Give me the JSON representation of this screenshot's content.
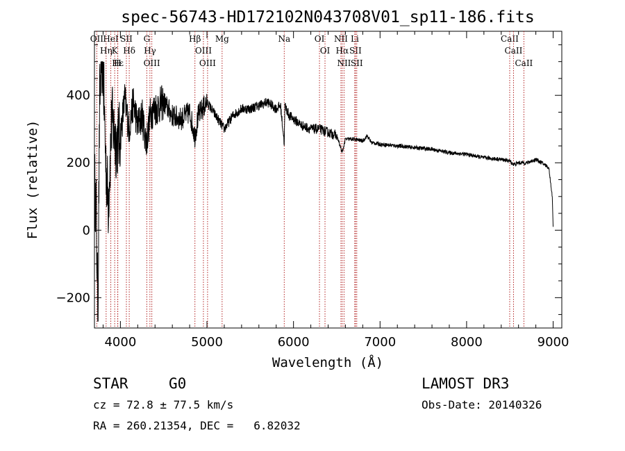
{
  "chart_data": {
    "type": "line",
    "title": "spec-56743-HD172102N043708V01_sp11-186.fits",
    "xlabel": "Wavelength (Å)",
    "ylabel": "Flux (relative)",
    "xlim": [
      3700,
      9100
    ],
    "ylim": [
      -290,
      590
    ],
    "x_ticks": [
      4000,
      5000,
      6000,
      7000,
      8000,
      9000
    ],
    "y_ticks": [
      -200,
      0,
      200,
      400
    ],
    "line_color": "#000000",
    "marker_color": "#b22222",
    "series": [
      {
        "name": "flux",
        "x": [
          3700,
          3720,
          3740,
          3760,
          3780,
          3800,
          3830,
          3860,
          3900,
          3950,
          4000,
          4050,
          4100,
          4150,
          4200,
          4250,
          4300,
          4350,
          4400,
          4500,
          4600,
          4700,
          4800,
          4860,
          4900,
          5000,
          5100,
          5200,
          5300,
          5400,
          5500,
          5600,
          5700,
          5800,
          5850,
          5893,
          5900,
          5950,
          6000,
          6100,
          6200,
          6300,
          6400,
          6500,
          6563,
          6600,
          6700,
          6800,
          6850,
          6900,
          7000,
          7200,
          7400,
          7600,
          7800,
          8000,
          8200,
          8400,
          8500,
          8542,
          8600,
          8700,
          8800,
          8900,
          8950,
          8990,
          9000
        ],
        "y": [
          150,
          60,
          -250,
          380,
          520,
          480,
          210,
          80,
          330,
          260,
          280,
          390,
          300,
          380,
          310,
          340,
          260,
          350,
          360,
          380,
          340,
          330,
          350,
          280,
          340,
          380,
          340,
          300,
          340,
          360,
          360,
          370,
          380,
          360,
          370,
          260,
          370,
          340,
          330,
          310,
          300,
          300,
          290,
          280,
          230,
          270,
          270,
          265,
          280,
          260,
          255,
          250,
          245,
          240,
          230,
          225,
          215,
          210,
          205,
          195,
          200,
          200,
          210,
          195,
          185,
          100,
          10
        ]
      }
    ],
    "spectral_lines": [
      {
        "label": "Hε",
        "wavelength": 3970
      },
      {
        "label": "Hδ",
        "wavelength": 4102
      },
      {
        "label": "K",
        "wavelength": 3934
      },
      {
        "label": "OIII",
        "wavelength": 4363
      },
      {
        "label": "OII",
        "wavelength": 3727
      },
      {
        "label": "HeI",
        "wavelength": 3889
      },
      {
        "label": "SII",
        "wavelength": 4069
      },
      {
        "label": "Hγ",
        "wavelength": 4341
      },
      {
        "label": "OIII",
        "wavelength": 4959
      },
      {
        "label": "OIII",
        "wavelength": 5007
      },
      {
        "label": "Hη",
        "wavelength": 3835
      },
      {
        "label": "H",
        "wavelength": 3968
      },
      {
        "label": "G",
        "wavelength": 4305
      },
      {
        "label": "Hβ",
        "wavelength": 4861
      },
      {
        "label": "Mg",
        "wavelength": 5175
      },
      {
        "label": "Na",
        "wavelength": 5893
      },
      {
        "label": "OI",
        "wavelength": 6300
      },
      {
        "label": "OI",
        "wavelength": 6364
      },
      {
        "label": "Hα",
        "wavelength": 6563
      },
      {
        "label": "NII",
        "wavelength": 6548
      },
      {
        "label": "NII",
        "wavelength": 6584
      },
      {
        "label": "SII",
        "wavelength": 6716
      },
      {
        "label": "SII",
        "wavelength": 6731
      },
      {
        "label": "Li",
        "wavelength": 6708
      },
      {
        "label": "CaII",
        "wavelength": 8498
      },
      {
        "label": "CaII",
        "wavelength": 8542
      },
      {
        "label": "CaII",
        "wavelength": 8662
      }
    ]
  },
  "info": {
    "class_label": "STAR",
    "subclass": "G0",
    "survey": "LAMOST DR3",
    "cz": "cz = 72.8 ± 77.5 km/s",
    "obs_date": "Obs-Date: 20140326",
    "coords": "RA = 260.21354, DEC =   6.82032"
  }
}
